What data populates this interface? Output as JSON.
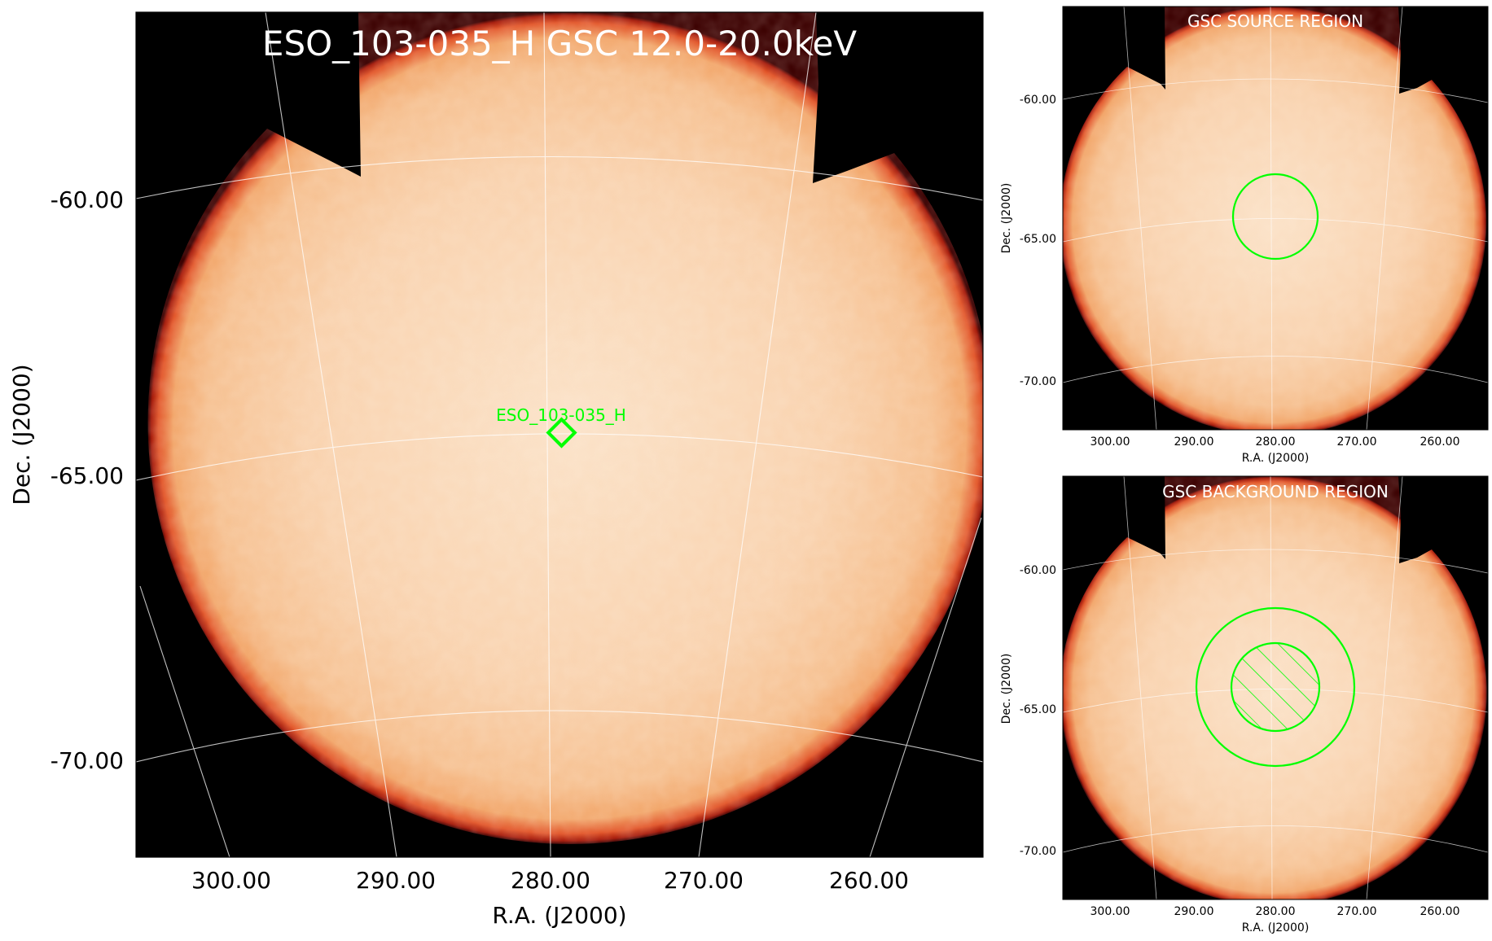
{
  "chart_data": [
    {
      "type": "heatmap",
      "panel": "main",
      "title": "ESO_103-035_H GSC 12.0-20.0keV",
      "xlabel": "R.A. (J2000)",
      "ylabel": "Dec. (J2000)",
      "xticks": [
        "300.00",
        "290.00",
        "280.00",
        "270.00",
        "260.00"
      ],
      "yticks": [
        "-60.00",
        "-65.00",
        "-70.00"
      ],
      "xlim": [
        305.0,
        254.0
      ],
      "ylim": [
        -71.7,
        -56.5
      ],
      "grid": true,
      "colormap": "gist_heat-like (black → red → orange → cream)",
      "source": {
        "label": "ESO_103-035_H",
        "ra": 279.3,
        "dec": -64.9,
        "marker": "diamond",
        "color": "#00ff00"
      }
    },
    {
      "type": "heatmap",
      "panel": "source-region",
      "title": "GSC SOURCE REGION",
      "xlabel": "R.A. (J2000)",
      "ylabel": "Dec. (J2000)",
      "xticks": [
        "300.00",
        "290.00",
        "280.00",
        "270.00",
        "260.00"
      ],
      "yticks": [
        "-60.00",
        "-65.00",
        "-70.00"
      ],
      "grid": true,
      "regions": [
        {
          "shape": "circle",
          "ra": 279.3,
          "dec": -64.9,
          "radius_deg": 1.5,
          "color": "#00ff00"
        }
      ]
    },
    {
      "type": "heatmap",
      "panel": "background-region",
      "title": "GSC BACKGROUND REGION",
      "xlabel": "R.A. (J2000)",
      "ylabel": "Dec. (J2000)",
      "xticks": [
        "300.00",
        "290.00",
        "280.00",
        "270.00",
        "260.00"
      ],
      "yticks": [
        "-60.00",
        "-65.00",
        "-70.00"
      ],
      "grid": true,
      "regions": [
        {
          "shape": "annulus-outer",
          "ra": 279.3,
          "dec": -64.9,
          "radius_deg": 2.9,
          "color": "#00ff00"
        },
        {
          "shape": "circle-excluded",
          "ra": 279.3,
          "dec": -64.9,
          "radius_deg": 1.6,
          "hatched": true,
          "color": "#00ff00"
        }
      ]
    }
  ]
}
